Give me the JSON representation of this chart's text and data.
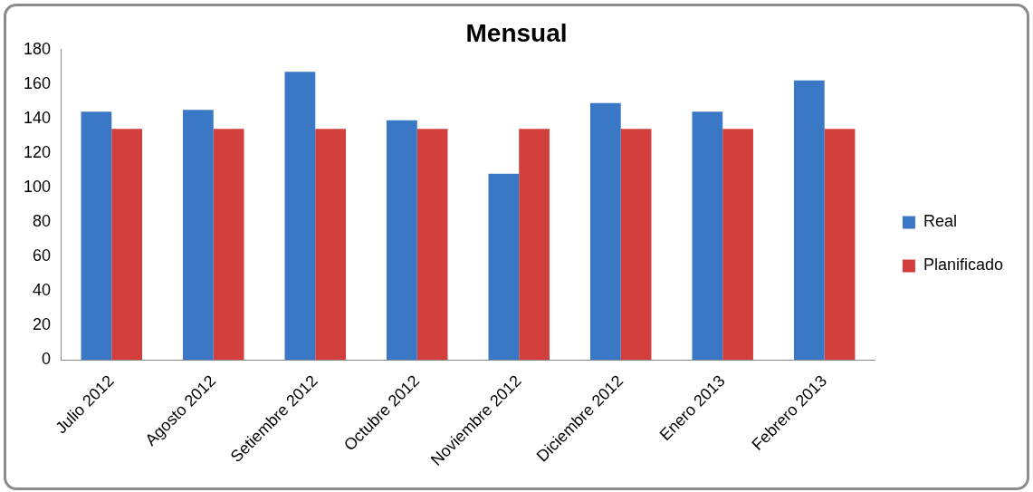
{
  "chart_data": {
    "type": "bar",
    "title": "Mensual",
    "categories": [
      "Julio 2012",
      "Agosto 2012",
      "Setiembre 2012",
      "Octubre 2012",
      "Noviembre 2012",
      "Diciembre 2012",
      "Enero 2013",
      "Febrero 2013"
    ],
    "series": [
      {
        "name": "Real",
        "color": "#3a77c4",
        "values": [
          144,
          145,
          167,
          139,
          108,
          149,
          144,
          162
        ]
      },
      {
        "name": "Planificado",
        "color": "#d23f3c",
        "values": [
          134,
          134,
          134,
          134,
          134,
          134,
          134,
          134
        ]
      }
    ],
    "ylim": [
      0,
      180
    ],
    "yticks": [
      0,
      20,
      40,
      60,
      80,
      100,
      120,
      140,
      160,
      180
    ],
    "grid": false,
    "legend": "right"
  }
}
